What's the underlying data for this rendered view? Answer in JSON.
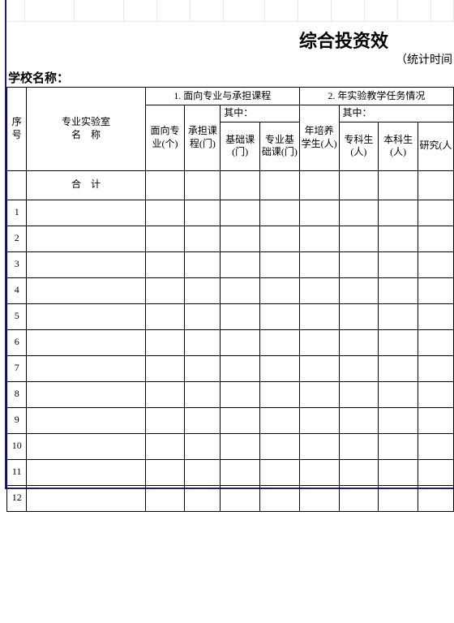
{
  "title": "综合投资效",
  "subtitle": "（统计时间",
  "school_label": "学校名称：",
  "headers": {
    "seq": "序号",
    "lab_name": "专业实验室\n名　称",
    "section1": "1. 面向专业与承担课程",
    "section2": "2. 年实验教学任务情况",
    "major": "面向专业(个)",
    "course": "承担课程(门)",
    "qizhong": "其中：",
    "basic": "基础课(门)",
    "pro_basic": "专业基础课(门)",
    "students": "年培养学生(人)",
    "zhuanke": "专科生(人)",
    "benke": "本科生(人)",
    "yanjiu": "研究(人"
  },
  "total_label": "合　计",
  "rows": [
    1,
    2,
    3,
    4,
    5,
    6,
    7,
    8,
    9,
    10,
    11,
    12
  ]
}
